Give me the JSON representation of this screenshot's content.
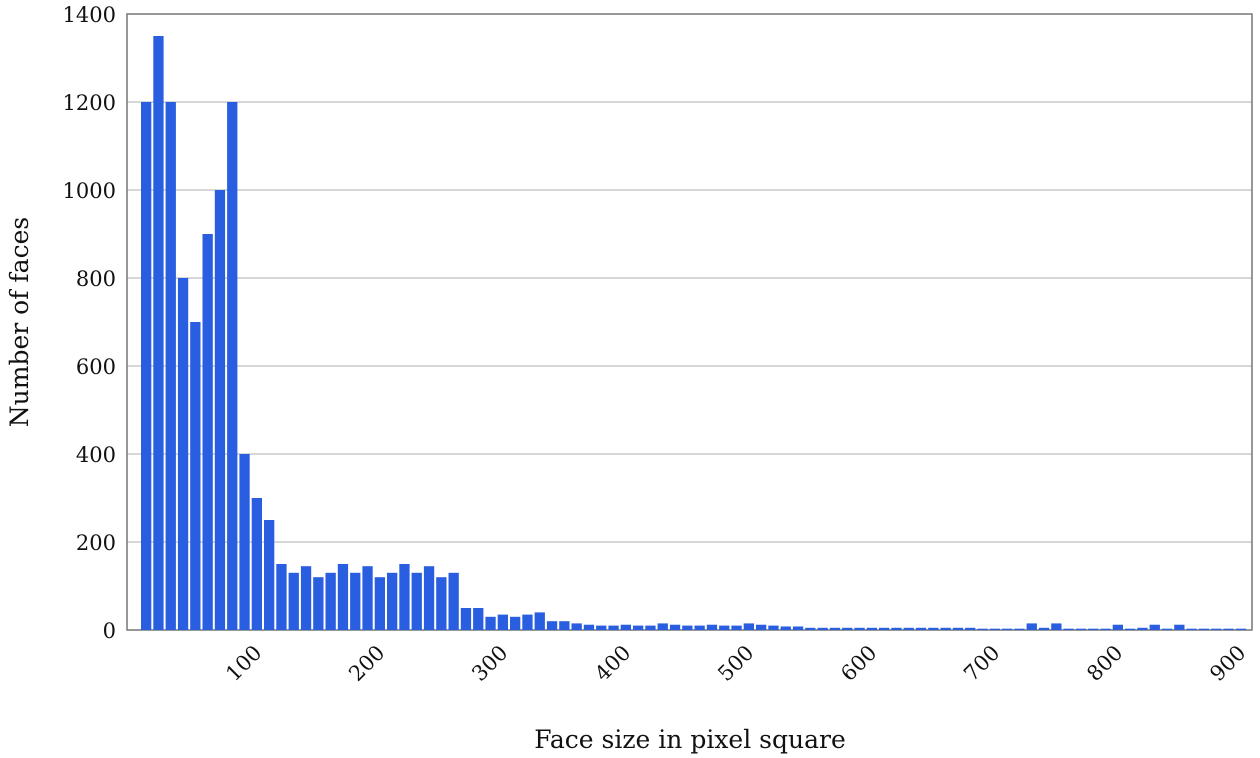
{
  "chart_data": {
    "type": "bar",
    "title": "",
    "xlabel": "Face size in pixel square",
    "ylabel": "Number of faces",
    "ylim": [
      0,
      1400
    ],
    "xlim": [
      0,
      900
    ],
    "bin_width": 10,
    "grid": "horizontal",
    "bar_color": "#2a5ee0",
    "grid_color": "#c8cccc",
    "y_ticks": [
      0,
      200,
      400,
      600,
      800,
      1000,
      1200,
      1400
    ],
    "x_ticks": [
      100,
      200,
      300,
      400,
      500,
      600,
      700,
      800,
      900
    ],
    "x": [
      10,
      20,
      30,
      40,
      50,
      60,
      70,
      80,
      90,
      100,
      110,
      120,
      130,
      140,
      150,
      160,
      170,
      180,
      190,
      200,
      210,
      220,
      230,
      240,
      250,
      260,
      270,
      280,
      290,
      300,
      310,
      320,
      330,
      340,
      350,
      360,
      370,
      380,
      390,
      400,
      410,
      420,
      430,
      440,
      450,
      460,
      470,
      480,
      490,
      500,
      510,
      520,
      530,
      540,
      550,
      560,
      570,
      580,
      590,
      600,
      610,
      620,
      630,
      640,
      650,
      660,
      670,
      680,
      690,
      700,
      710,
      720,
      730,
      740,
      750,
      760,
      770,
      780,
      790,
      800,
      810,
      820,
      830,
      840,
      850,
      860,
      870,
      880,
      890,
      900
    ],
    "values": [
      1200,
      1350,
      1200,
      800,
      700,
      900,
      1000,
      1200,
      400,
      300,
      250,
      150,
      130,
      145,
      120,
      130,
      150,
      130,
      145,
      120,
      130,
      150,
      130,
      145,
      120,
      130,
      50,
      50,
      30,
      35,
      30,
      35,
      40,
      20,
      20,
      15,
      12,
      10,
      10,
      12,
      10,
      10,
      15,
      12,
      10,
      10,
      12,
      10,
      10,
      15,
      12,
      10,
      8,
      8,
      5,
      5,
      5,
      5,
      5,
      5,
      5,
      5,
      5,
      5,
      5,
      5,
      5,
      5,
      3,
      3,
      3,
      3,
      15,
      5,
      15,
      3,
      3,
      3,
      3,
      12,
      3,
      5,
      12,
      3,
      12,
      3,
      3,
      3,
      3,
      3
    ]
  }
}
